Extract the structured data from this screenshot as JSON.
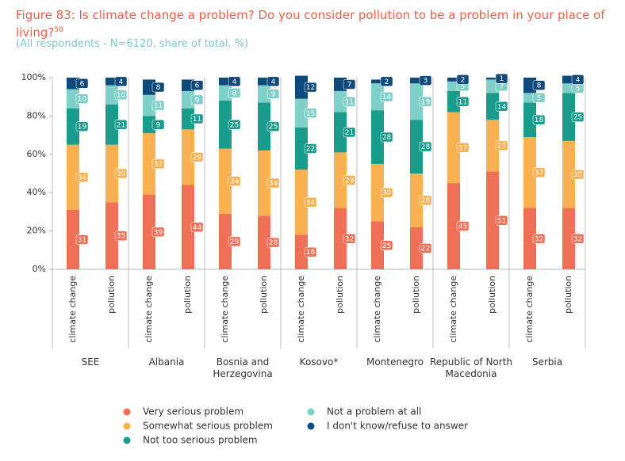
{
  "chart_data": {
    "type": "stacked_bar",
    "title": "Figure 83: Is climate change a problem? Do you consider pollution to be a problem in your place of living?",
    "title_footnote": "58",
    "subtitle": "(All respondents - N=6120, share of total, %)",
    "groups": [
      "SEE",
      "Albania",
      "Bosnia and Herzegovina",
      "Kosovo*",
      "Montenegro",
      "Republic of North Macedonia",
      "Serbia"
    ],
    "categories": [
      "climate change",
      "pollution",
      "climate change",
      "pollution",
      "climate change",
      "pollution",
      "climate change",
      "pollution",
      "climate change",
      "pollution",
      "climate change",
      "pollution",
      "climate change",
      "pollution"
    ],
    "series": [
      {
        "name": "Very serious problem",
        "color": "#f07057",
        "values": [
          31,
          35,
          39,
          44,
          29,
          28,
          18,
          32,
          25,
          22,
          45,
          51,
          32,
          32
        ]
      },
      {
        "name": "Somewhat serious problem",
        "color": "#f8b050",
        "values": [
          34,
          30,
          32,
          29,
          34,
          34,
          34,
          29,
          30,
          28,
          37,
          27,
          37,
          35
        ]
      },
      {
        "name": "Not too serious problem",
        "color": "#1a9c8c",
        "values": [
          19,
          21,
          9,
          11,
          25,
          25,
          22,
          21,
          28,
          28,
          11,
          14,
          18,
          25
        ]
      },
      {
        "name": "Not a problem at all",
        "color": "#7fd0c8",
        "values": [
          10,
          10,
          11,
          9,
          8,
          9,
          15,
          11,
          14,
          19,
          5,
          7,
          5,
          5
        ]
      },
      {
        "name": "I don't know/refuse to answer",
        "color": "#0f4a7c",
        "values": [
          6,
          4,
          8,
          6,
          4,
          4,
          12,
          7,
          2,
          3,
          2,
          1,
          8,
          4
        ]
      }
    ],
    "ylim": [
      0,
      100
    ],
    "yticks": [
      {
        "value": 0,
        "label": "0%"
      },
      {
        "value": 20,
        "label": "20%"
      },
      {
        "value": 40,
        "label": "40%"
      },
      {
        "value": 60,
        "label": "60%"
      },
      {
        "value": 80,
        "label": "80%"
      },
      {
        "value": 100,
        "label": "100%"
      }
    ],
    "grid": false
  }
}
